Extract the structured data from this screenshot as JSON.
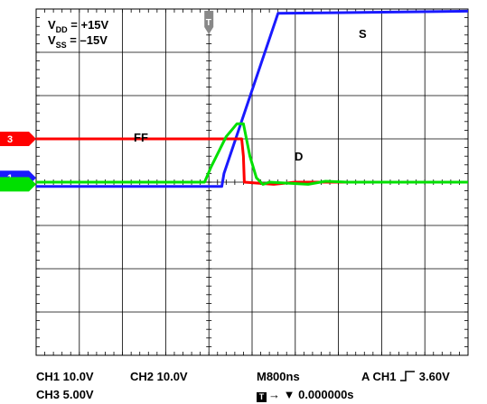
{
  "chart_data": {
    "type": "line",
    "grid": true,
    "x_unit": "s",
    "x_divisions": 10,
    "y_divisions": 8,
    "x_range_div": [
      -4,
      6
    ],
    "y_range_div": [
      -4,
      4
    ],
    "annotations": {
      "vdd_main": "V",
      "vdd_sub": "DD",
      "vdd_rest": " = +15V",
      "vss_main": "V",
      "vss_sub": "SS",
      "vss_rest": " = –15V"
    },
    "series": [
      {
        "name": "S",
        "channel": "1",
        "color": "#1a1aff",
        "points_div": [
          [
            -4,
            -0.1
          ],
          [
            0.3,
            -0.1
          ],
          [
            0.35,
            0.2
          ],
          [
            1.6,
            3.9
          ],
          [
            6,
            3.95
          ]
        ]
      },
      {
        "name": "FF",
        "channel": "3",
        "color": "#ff0000",
        "points_div": [
          [
            -4,
            1.0
          ],
          [
            0.76,
            1.0
          ],
          [
            0.8,
            0.6
          ],
          [
            0.82,
            0.0
          ],
          [
            1.5,
            -0.05
          ],
          [
            2.0,
            0.0
          ],
          [
            6,
            0.0
          ]
        ]
      },
      {
        "name": "D",
        "color": "#00e000",
        "points_div": [
          [
            -4,
            0.0
          ],
          [
            -0.1,
            0.0
          ],
          [
            0.05,
            0.35
          ],
          [
            0.4,
            1.05
          ],
          [
            0.65,
            1.35
          ],
          [
            0.8,
            1.35
          ],
          [
            0.95,
            0.6
          ],
          [
            1.1,
            0.1
          ],
          [
            1.25,
            -0.05
          ],
          [
            1.4,
            0.0
          ],
          [
            2.3,
            -0.05
          ],
          [
            2.7,
            0.02
          ],
          [
            3.2,
            0.0
          ],
          [
            6,
            0.0
          ]
        ]
      }
    ],
    "markers": [
      {
        "label": "3",
        "color": "#ff0000",
        "level_div": 1.0
      },
      {
        "label": "1",
        "color": "#1a1aff",
        "level_div": 0.1
      },
      {
        "label": "",
        "color": "#00e000",
        "level_div": -0.05
      }
    ],
    "trigger_marker": {
      "label": "T",
      "position_div": 0
    }
  },
  "readout": {
    "ch1": "CH1  10.0V",
    "ch2": "CH2  10.0V",
    "ch3": "CH3  5.00V",
    "timebase": "M800ns",
    "trigger_a": "A  CH1",
    "trigger_level": "3.60V",
    "trigger_icon": "T",
    "trigger_pos": "→ ▼ 0.000000s"
  },
  "colors": {
    "grid": "#000000",
    "background": "#ffffff"
  }
}
